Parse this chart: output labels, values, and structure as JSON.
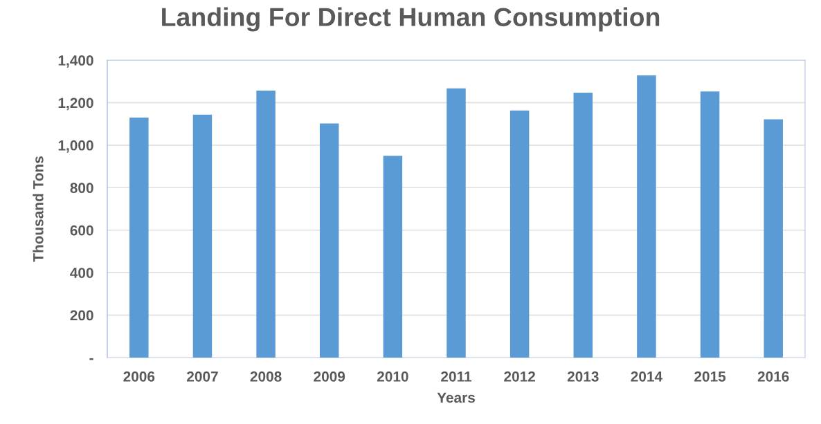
{
  "chart_data": {
    "type": "bar",
    "title": "Landing For Direct Human Consumption",
    "xlabel": "Years",
    "ylabel": "Thousand Tons",
    "categories": [
      "2006",
      "2007",
      "2008",
      "2009",
      "2010",
      "2011",
      "2012",
      "2013",
      "2014",
      "2015",
      "2016"
    ],
    "values": [
      1130,
      1144,
      1257,
      1102,
      950,
      1267,
      1163,
      1247,
      1328,
      1253,
      1122
    ],
    "color": "#5b9bd5",
    "ylim": [
      0,
      1400
    ],
    "yticks": [
      {
        "value": 0,
        "label": "-"
      },
      {
        "value": 200,
        "label": "200"
      },
      {
        "value": 400,
        "label": "400"
      },
      {
        "value": 600,
        "label": "600"
      },
      {
        "value": 800,
        "label": "800"
      },
      {
        "value": 1000,
        "label": "1,000"
      },
      {
        "value": 1200,
        "label": "1,200"
      },
      {
        "value": 1400,
        "label": "1,400"
      }
    ],
    "grid": "y"
  }
}
